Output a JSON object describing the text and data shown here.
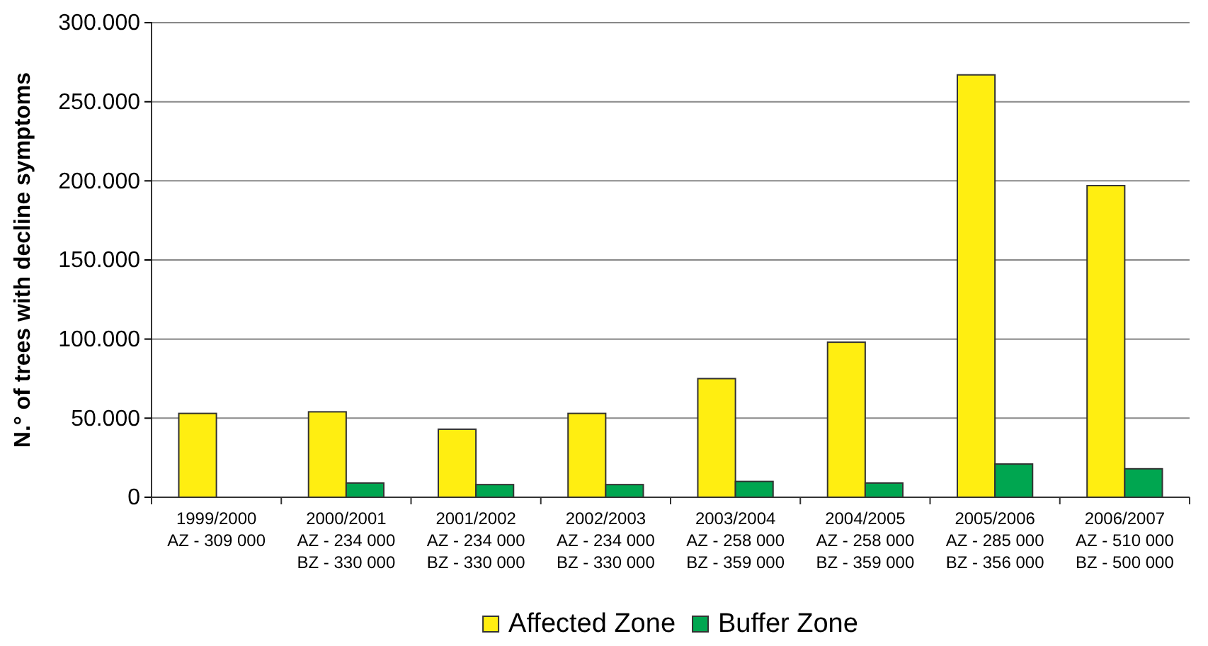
{
  "chart_data": {
    "type": "bar",
    "ylabel": "N.° of trees with decline symptoms",
    "categories": [
      "1999/2000\nAZ - 309 000",
      "2000/2001\nAZ - 234 000\nBZ - 330 000",
      "2001/2002\nAZ - 234 000\nBZ - 330 000",
      "2002/2003\nAZ - 234 000\nBZ - 330 000",
      "2003/2004\nAZ - 258 000\nBZ - 359 000",
      "2004/2005\nAZ - 258 000\nBZ - 359 000",
      "2005/2006\nAZ - 285 000\nBZ - 356 000",
      "2006/2007\nAZ - 510 000\nBZ - 500 000"
    ],
    "series": [
      {
        "name": "Affected Zone",
        "color": "#ffee11",
        "values": [
          53000,
          54000,
          43000,
          53000,
          75000,
          98000,
          267000,
          197000
        ]
      },
      {
        "name": "Buffer Zone",
        "color": "#00a650",
        "values": [
          null,
          9000,
          8000,
          8000,
          10000,
          9000,
          21000,
          18000
        ]
      }
    ],
    "ylim": [
      0,
      300000
    ],
    "yticks": [
      {
        "value": 0,
        "label": "0"
      },
      {
        "value": 50000,
        "label": "50.000"
      },
      {
        "value": 100000,
        "label": "100.000"
      },
      {
        "value": 150000,
        "label": "150.000"
      },
      {
        "value": 200000,
        "label": "200.000"
      },
      {
        "value": 250000,
        "label": "250.000"
      },
      {
        "value": 300000,
        "label": "300.000"
      }
    ],
    "grid": "y",
    "legend": "bottom"
  }
}
